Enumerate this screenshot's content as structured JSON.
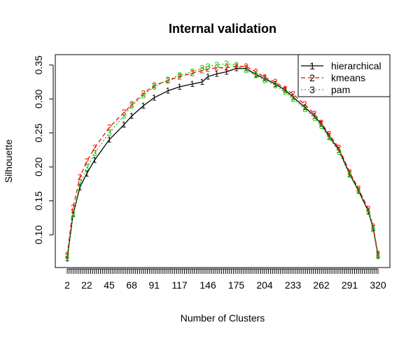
{
  "chart_data": {
    "type": "line",
    "title": "Internal validation",
    "xlabel": "Number of Clusters",
    "ylabel": "Silhouette",
    "xlim": [
      2,
      320
    ],
    "ylim": [
      0.06,
      0.355
    ],
    "x_tick_labels": [
      "2",
      "22",
      "45",
      "68",
      "91",
      "117",
      "146",
      "175",
      "204",
      "233",
      "262",
      "291",
      "320"
    ],
    "y_tick_labels": [
      "0.10",
      "0.15",
      "0.20",
      "0.25",
      "0.30",
      "0.35"
    ],
    "y_ticks": [
      0.1,
      0.15,
      0.2,
      0.25,
      0.3,
      0.35
    ],
    "legend_position": "top-right",
    "series": [
      {
        "name": "hierarchical",
        "marker": "1",
        "color": "#000000",
        "line_style": "solid",
        "x": [
          2,
          8,
          15,
          22,
          30,
          45,
          60,
          68,
          80,
          91,
          105,
          117,
          130,
          140,
          146,
          155,
          165,
          175,
          185,
          195,
          204,
          215,
          225,
          233,
          245,
          255,
          262,
          270,
          280,
          291,
          300,
          310,
          315,
          320
        ],
        "values": [
          0.065,
          0.13,
          0.17,
          0.19,
          0.21,
          0.24,
          0.262,
          0.275,
          0.29,
          0.302,
          0.312,
          0.318,
          0.322,
          0.325,
          0.333,
          0.337,
          0.34,
          0.345,
          0.345,
          0.336,
          0.33,
          0.322,
          0.313,
          0.303,
          0.288,
          0.275,
          0.263,
          0.245,
          0.225,
          0.19,
          0.165,
          0.135,
          0.11,
          0.07
        ]
      },
      {
        "name": "kmeans",
        "marker": "2",
        "color": "#ff0000",
        "line_style": "dashed",
        "x": [
          2,
          8,
          15,
          22,
          30,
          45,
          60,
          68,
          80,
          91,
          105,
          117,
          130,
          140,
          146,
          155,
          165,
          175,
          185,
          195,
          204,
          215,
          225,
          233,
          245,
          255,
          262,
          270,
          280,
          291,
          300,
          310,
          315,
          320
        ],
        "values": [
          0.07,
          0.14,
          0.185,
          0.208,
          0.228,
          0.258,
          0.28,
          0.292,
          0.308,
          0.32,
          0.327,
          0.333,
          0.338,
          0.342,
          0.344,
          0.346,
          0.346,
          0.348,
          0.348,
          0.34,
          0.332,
          0.325,
          0.315,
          0.307,
          0.292,
          0.278,
          0.265,
          0.248,
          0.228,
          0.192,
          0.168,
          0.138,
          0.112,
          0.072
        ]
      },
      {
        "name": "pam",
        "marker": "3",
        "color": "#00cd00",
        "line_style": "dotted",
        "x": [
          2,
          8,
          15,
          22,
          30,
          45,
          60,
          68,
          80,
          91,
          105,
          117,
          130,
          140,
          146,
          155,
          165,
          175,
          185,
          195,
          204,
          215,
          225,
          233,
          245,
          255,
          262,
          270,
          280,
          291,
          300,
          310,
          315,
          320
        ],
        "values": [
          0.068,
          0.13,
          0.175,
          0.198,
          0.22,
          0.25,
          0.275,
          0.29,
          0.305,
          0.318,
          0.328,
          0.335,
          0.34,
          0.345,
          0.348,
          0.35,
          0.352,
          0.35,
          0.342,
          0.335,
          0.327,
          0.32,
          0.31,
          0.3,
          0.285,
          0.272,
          0.26,
          0.243,
          0.222,
          0.188,
          0.164,
          0.134,
          0.108,
          0.068
        ]
      }
    ]
  }
}
